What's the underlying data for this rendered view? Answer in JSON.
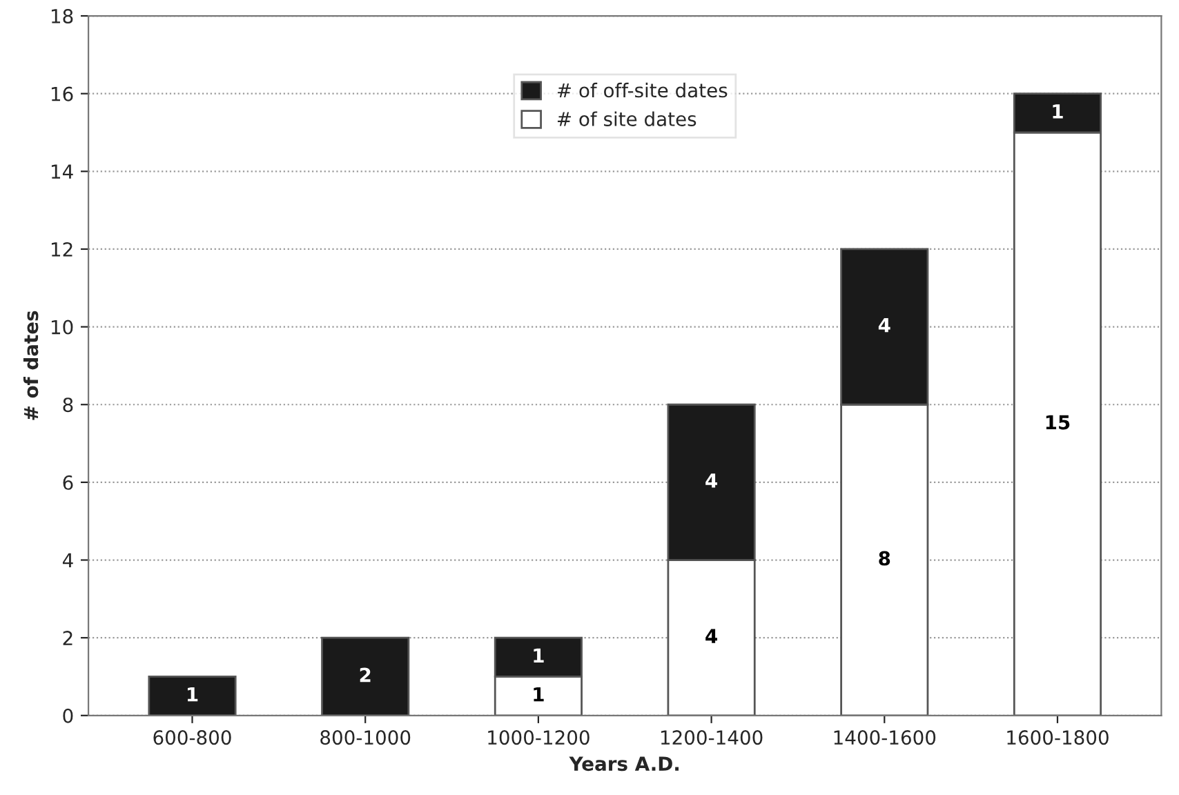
{
  "chart_data": {
    "type": "bar",
    "stacked": true,
    "xlabel": "Years A.D.",
    "ylabel": "# of dates",
    "categories": [
      "600-800",
      "800-1000",
      "1000-1200",
      "1200-1400",
      "1400-1600",
      "1600-1800"
    ],
    "series": [
      {
        "name": "# of site dates",
        "color": "#ffffff",
        "values": [
          0,
          0,
          1,
          4,
          8,
          15
        ],
        "value_labels": [
          null,
          null,
          "1",
          "4",
          "8",
          "15"
        ]
      },
      {
        "name": "# of off-site dates",
        "color": "#1a1a1a",
        "values": [
          1,
          2,
          1,
          4,
          4,
          1
        ],
        "value_labels": [
          "1",
          "2",
          "1",
          "4",
          "4",
          "1"
        ]
      }
    ],
    "ylim": [
      0,
      18
    ],
    "yticks": [
      0,
      2,
      4,
      6,
      8,
      10,
      12,
      14,
      16,
      18
    ],
    "grid": "y",
    "legend": "top"
  }
}
